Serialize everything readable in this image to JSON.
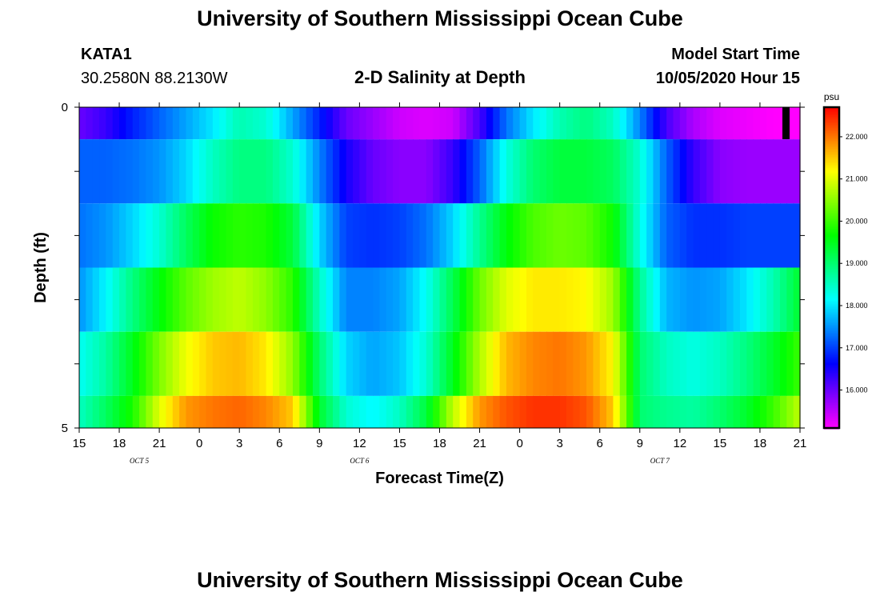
{
  "header": {
    "title_top": "University of Southern Mississippi Ocean Cube",
    "station": "KATA1",
    "location": "30.2580N 88.2130W",
    "subtitle": "2-D Salinity at Depth",
    "model_label": "Model Start Time",
    "model_time": "10/05/2020 Hour 15",
    "title_bottom": "University of Southern Mississippi Ocean Cube"
  },
  "colors": {
    "low": "#ff00ff",
    "high": "#ff0000"
  },
  "chart_data": {
    "type": "heatmap",
    "title": "2-D Salinity at Depth",
    "xlabel": "Forecast Time(Z)",
    "ylabel": "Depth (ft)",
    "colorbar_label": "psu",
    "colorbar_ticks": [
      "16.000",
      "17.000",
      "18.000",
      "19.000",
      "20.000",
      "21.000",
      "22.000"
    ],
    "clim": [
      15.1,
      22.7
    ],
    "x_ticks": [
      "15",
      "18",
      "21",
      "0",
      "3",
      "6",
      "9",
      "12",
      "15",
      "18",
      "21",
      "0",
      "3",
      "6",
      "9",
      "12",
      "15",
      "18",
      "21"
    ],
    "date_labels": [
      {
        "text": "OCT 5",
        "at_hour": 4.5
      },
      {
        "text": "OCT 6",
        "at_hour": 21
      },
      {
        "text": "OCT 7",
        "at_hour": 43.5
      }
    ],
    "y_ticks": [
      "0",
      "5"
    ],
    "ylim": [
      0,
      5
    ],
    "x_hours": [
      0,
      2,
      4,
      6,
      8,
      10,
      12,
      14,
      16,
      18,
      20,
      22,
      24,
      26,
      28,
      30,
      32,
      34,
      36,
      38,
      40,
      42,
      44,
      46,
      48,
      50,
      52,
      54
    ],
    "depth_bands": [
      {
        "depth": [
          0,
          0.5
        ],
        "values": [
          16.0,
          16.3,
          16.8,
          17.2,
          17.6,
          18.0,
          18.6,
          18.4,
          17.6,
          16.8,
          16.0,
          15.7,
          15.4,
          15.3,
          15.4,
          16.2,
          17.3,
          18.0,
          18.6,
          18.9,
          18.5,
          17.4,
          16.2,
          15.6,
          15.3,
          15.2,
          15.1,
          15.1
        ]
      },
      {
        "depth": [
          0.5,
          1.5
        ],
        "values": [
          17.2,
          17.2,
          17.3,
          17.5,
          17.9,
          18.5,
          18.9,
          18.9,
          18.4,
          17.4,
          16.5,
          16.0,
          15.8,
          15.8,
          16.3,
          17.2,
          18.3,
          19.0,
          19.3,
          19.3,
          19.1,
          18.4,
          17.2,
          16.3,
          15.8,
          15.7,
          15.7,
          15.7
        ]
      },
      {
        "depth": [
          1.5,
          2.5
        ],
        "values": [
          17.3,
          17.5,
          17.9,
          18.4,
          19.1,
          19.7,
          19.9,
          19.8,
          19.3,
          17.9,
          17.0,
          16.9,
          17.0,
          17.3,
          17.9,
          18.8,
          19.6,
          20.1,
          20.3,
          20.2,
          19.7,
          18.3,
          17.2,
          16.9,
          16.9,
          17.0,
          17.0,
          17.0
        ]
      },
      {
        "depth": [
          2.5,
          3.5
        ],
        "values": [
          17.5,
          18.1,
          18.9,
          19.6,
          20.2,
          20.6,
          20.8,
          20.5,
          19.9,
          18.5,
          17.4,
          17.4,
          17.6,
          18.2,
          19.2,
          20.3,
          21.0,
          21.3,
          21.3,
          21.2,
          20.6,
          18.8,
          17.7,
          17.5,
          17.6,
          18.0,
          18.6,
          19.4
        ]
      },
      {
        "depth": [
          3.5,
          4.5
        ],
        "values": [
          18.2,
          18.7,
          19.5,
          20.4,
          21.1,
          21.5,
          21.6,
          21.3,
          20.5,
          19.0,
          17.9,
          17.6,
          17.8,
          18.4,
          19.5,
          20.7,
          21.6,
          21.9,
          22.0,
          21.8,
          21.2,
          19.0,
          18.5,
          18.3,
          18.5,
          18.9,
          19.4,
          20.0
        ]
      },
      {
        "depth": [
          4.5,
          5.0
        ],
        "values": [
          18.5,
          19.1,
          19.8,
          21.0,
          21.8,
          22.0,
          22.1,
          21.9,
          21.5,
          19.4,
          18.4,
          18.1,
          18.5,
          19.3,
          20.8,
          21.8,
          22.2,
          22.4,
          22.4,
          22.2,
          21.5,
          19.0,
          18.8,
          18.7,
          19.0,
          19.4,
          20.0,
          20.8
        ]
      }
    ]
  }
}
